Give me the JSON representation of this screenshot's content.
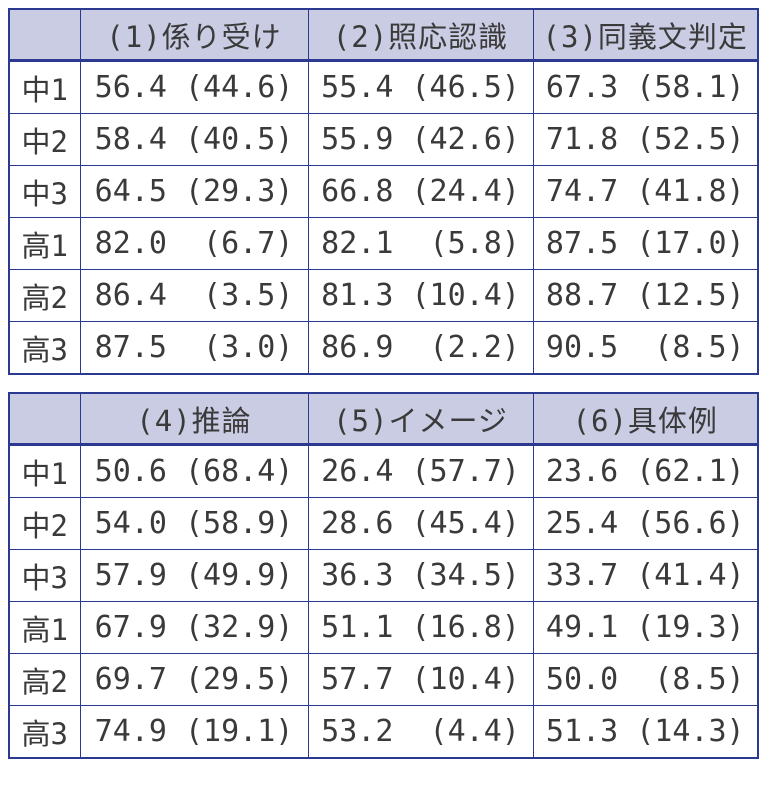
{
  "colors": {
    "border": "#2B3990",
    "header_bg": "#C9CCE2",
    "text": "#3A3A3A",
    "page_bg": "#FFFFFF"
  },
  "tables": [
    {
      "headers": [
        "",
        "(1)係り受け",
        "(2)照応認識",
        "(3)同義文判定"
      ],
      "rows": [
        {
          "label": "中1",
          "cells": [
            "56.4 (44.6)",
            "55.4 (46.5)",
            "67.3 (58.1)"
          ]
        },
        {
          "label": "中2",
          "cells": [
            "58.4 (40.5)",
            "55.9 (42.6)",
            "71.8 (52.5)"
          ]
        },
        {
          "label": "中3",
          "cells": [
            "64.5 (29.3)",
            "66.8 (24.4)",
            "74.7 (41.8)"
          ]
        },
        {
          "label": "高1",
          "cells": [
            "82.0  (6.7)",
            "82.1  (5.8)",
            "87.5 (17.0)"
          ]
        },
        {
          "label": "高2",
          "cells": [
            "86.4  (3.5)",
            "81.3 (10.4)",
            "88.7 (12.5)"
          ]
        },
        {
          "label": "高3",
          "cells": [
            "87.5  (3.0)",
            "86.9  (2.2)",
            "90.5  (8.5)"
          ]
        }
      ]
    },
    {
      "headers": [
        "",
        "(4)推論",
        "(5)イメージ",
        "(6)具体例"
      ],
      "rows": [
        {
          "label": "中1",
          "cells": [
            "50.6 (68.4)",
            "26.4 (57.7)",
            "23.6 (62.1)"
          ]
        },
        {
          "label": "中2",
          "cells": [
            "54.0 (58.9)",
            "28.6 (45.4)",
            "25.4 (56.6)"
          ]
        },
        {
          "label": "中3",
          "cells": [
            "57.9 (49.9)",
            "36.3 (34.5)",
            "33.7 (41.4)"
          ]
        },
        {
          "label": "高1",
          "cells": [
            "67.9 (32.9)",
            "51.1 (16.8)",
            "49.1 (19.3)"
          ]
        },
        {
          "label": "高2",
          "cells": [
            "69.7 (29.5)",
            "57.7 (10.4)",
            "50.0  (8.5)"
          ]
        },
        {
          "label": "高3",
          "cells": [
            "74.9 (19.1)",
            "53.2  (4.4)",
            "51.3 (14.3)"
          ]
        }
      ]
    }
  ],
  "chart_data": [
    {
      "type": "table",
      "title": "",
      "categories": [
        "中1",
        "中2",
        "中3",
        "高1",
        "高2",
        "高3"
      ],
      "series": [
        {
          "name": "(1)係り受け",
          "values": [
            56.4,
            58.4,
            64.5,
            82.0,
            86.4,
            87.5
          ],
          "values_in_parentheses": [
            44.6,
            40.5,
            29.3,
            6.7,
            3.5,
            3.0
          ]
        },
        {
          "name": "(2)照応認識",
          "values": [
            55.4,
            55.9,
            66.8,
            82.1,
            81.3,
            86.9
          ],
          "values_in_parentheses": [
            46.5,
            42.6,
            24.4,
            5.8,
            10.4,
            2.2
          ]
        },
        {
          "name": "(3)同義文判定",
          "values": [
            67.3,
            71.8,
            74.7,
            87.5,
            88.7,
            90.5
          ],
          "values_in_parentheses": [
            58.1,
            52.5,
            41.8,
            17.0,
            12.5,
            8.5
          ]
        }
      ]
    },
    {
      "type": "table",
      "title": "",
      "categories": [
        "中1",
        "中2",
        "中3",
        "高1",
        "高2",
        "高3"
      ],
      "series": [
        {
          "name": "(4)推論",
          "values": [
            50.6,
            54.0,
            57.9,
            67.9,
            69.7,
            74.9
          ],
          "values_in_parentheses": [
            68.4,
            58.9,
            49.9,
            32.9,
            29.5,
            19.1
          ]
        },
        {
          "name": "(5)イメージ",
          "values": [
            26.4,
            28.6,
            36.3,
            51.1,
            57.7,
            53.2
          ],
          "values_in_parentheses": [
            57.7,
            45.4,
            34.5,
            16.8,
            10.4,
            4.4
          ]
        },
        {
          "name": "(6)具体例",
          "values": [
            23.6,
            25.4,
            33.7,
            49.1,
            50.0,
            51.3
          ],
          "values_in_parentheses": [
            62.1,
            56.6,
            41.4,
            19.3,
            8.5,
            14.3
          ]
        }
      ]
    }
  ]
}
